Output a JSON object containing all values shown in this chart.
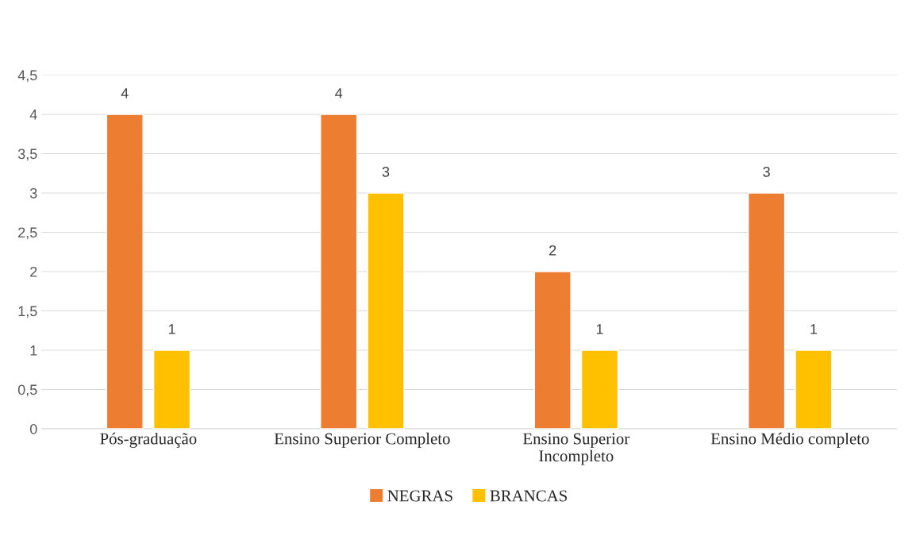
{
  "chart_data": {
    "type": "bar",
    "categories": [
      "Pós-graduação",
      "Ensino Superior Completo",
      "Ensino Superior\nIncompleto",
      "Ensino Médio completo"
    ],
    "series": [
      {
        "name": "NEGRAS",
        "color": "#ed7d31",
        "values": [
          4,
          4,
          2,
          3
        ]
      },
      {
        "name": "BRANCAS",
        "color": "#ffc000",
        "values": [
          1,
          3,
          1,
          1
        ]
      }
    ],
    "ylim": [
      0,
      4.5
    ],
    "yticks": [
      0,
      {
        "value": 0.5,
        "label": "0,5"
      },
      1,
      {
        "value": 1.5,
        "label": "1,5"
      },
      2,
      {
        "value": 2.5,
        "label": "2,5"
      },
      3,
      {
        "value": 3.5,
        "label": "3,5"
      },
      4,
      {
        "value": 4.5,
        "label": "4,5"
      }
    ],
    "grid": "y",
    "legend": "bottom",
    "data_labels": true
  }
}
